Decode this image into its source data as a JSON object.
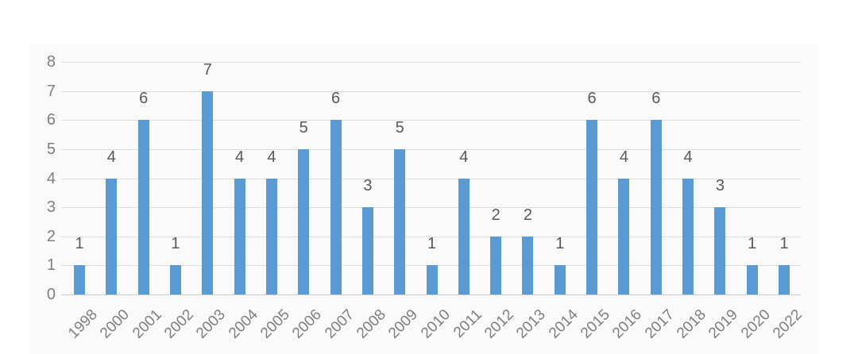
{
  "chart_data": {
    "type": "bar",
    "title": "",
    "xlabel": "",
    "ylabel": "",
    "categories": [
      "1998",
      "2000",
      "2001",
      "2002",
      "2003",
      "2004",
      "2005",
      "2006",
      "2007",
      "2008",
      "2009",
      "2010",
      "2011",
      "2012",
      "2013",
      "2014",
      "2015",
      "2016",
      "2017",
      "2018",
      "2019",
      "2020",
      "2022"
    ],
    "values": [
      1,
      4,
      6,
      1,
      7,
      4,
      4,
      5,
      6,
      3,
      5,
      1,
      4,
      2,
      2,
      1,
      6,
      4,
      6,
      4,
      3,
      1,
      1
    ],
    "ylim": [
      0,
      8
    ],
    "yticks": [
      0,
      1,
      2,
      3,
      4,
      5,
      6,
      7,
      8
    ],
    "grid": true,
    "legend": "none",
    "data_labels": true,
    "bar_color": "#5B9BD5",
    "gridline_color": "#dedede",
    "axis_label_color": "#7f7f7f",
    "data_label_color": "#595959"
  }
}
